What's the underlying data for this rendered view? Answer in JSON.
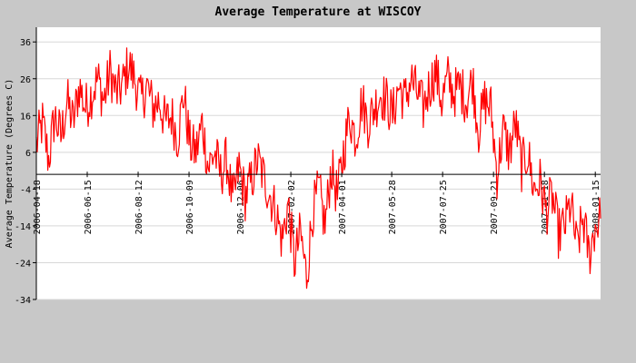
{
  "chart_data": {
    "type": "line",
    "title": "Average Temperature at WISCOY",
    "xlabel": "",
    "ylabel": "Average Temperature (Degrees C)",
    "x_range": [
      "2006-04-18",
      "2008-01-21"
    ],
    "ylim": [
      -34,
      40
    ],
    "y_ticks": [
      36,
      26,
      16,
      6,
      -4,
      -14,
      -24,
      -34
    ],
    "x_ticks": [
      "2006-04-18",
      "2006-06-15",
      "2006-08-12",
      "2006-10-09",
      "2006-12-06",
      "2007-02-02",
      "2007-04-01",
      "2007-05-28",
      "2007-07-25",
      "2007-09-21",
      "2007-11-18",
      "2008-01-15"
    ],
    "zero_line": 0,
    "grid": "horizontal",
    "line_color": "#ff0000",
    "series": [
      {
        "name": "",
        "dates": [
          "2006-04-18",
          "2006-04-25",
          "2006-05-02",
          "2006-05-09",
          "2006-05-16",
          "2006-05-23",
          "2006-05-30",
          "2006-06-06",
          "2006-06-13",
          "2006-06-20",
          "2006-06-27",
          "2006-07-04",
          "2006-07-11",
          "2006-07-18",
          "2006-07-25",
          "2006-08-01",
          "2006-08-08",
          "2006-08-15",
          "2006-08-22",
          "2006-08-29",
          "2006-09-05",
          "2006-09-12",
          "2006-09-19",
          "2006-09-26",
          "2006-10-03",
          "2006-10-10",
          "2006-10-17",
          "2006-10-24",
          "2006-10-31",
          "2006-11-07",
          "2006-11-14",
          "2006-11-21",
          "2006-11-28",
          "2006-12-05",
          "2006-12-12",
          "2006-12-19",
          "2006-12-26",
          "2007-01-16",
          "2007-01-23",
          "2007-01-30",
          "2007-02-06",
          "2007-02-13",
          "2007-02-20",
          "2007-02-27",
          "2007-03-06",
          "2007-03-13",
          "2007-03-20",
          "2007-03-27",
          "2007-04-03",
          "2007-04-10",
          "2007-04-17",
          "2007-04-24",
          "2007-05-01",
          "2007-05-08",
          "2007-05-15",
          "2007-05-22",
          "2007-05-29",
          "2007-06-05",
          "2007-06-12",
          "2007-06-19",
          "2007-06-26",
          "2007-07-03",
          "2007-07-10",
          "2007-07-17",
          "2007-07-24",
          "2007-07-31",
          "2007-08-07",
          "2007-08-14",
          "2007-08-21",
          "2007-08-28",
          "2007-09-04",
          "2007-09-11",
          "2007-09-18",
          "2007-09-25",
          "2007-10-02",
          "2007-10-09",
          "2007-10-16",
          "2007-10-23",
          "2007-10-30",
          "2007-11-06",
          "2007-11-13",
          "2007-11-20",
          "2007-11-27",
          "2007-12-04",
          "2007-12-11",
          "2007-12-18",
          "2007-12-25",
          "2008-01-01",
          "2008-01-08",
          "2008-01-15",
          "2008-01-21"
        ],
        "values": [
          8,
          14,
          4,
          16,
          10,
          20,
          14,
          24,
          18,
          22,
          26,
          20,
          28,
          22,
          24,
          30,
          26,
          20,
          24,
          18,
          20,
          14,
          16,
          10,
          22,
          8,
          6,
          14,
          2,
          6,
          0,
          4,
          -8,
          2,
          -6,
          -2,
          4,
          -10,
          -18,
          -8,
          -24,
          -16,
          -28,
          -10,
          -4,
          -14,
          2,
          -6,
          6,
          16,
          10,
          20,
          14,
          18,
          22,
          20,
          16,
          24,
          20,
          26,
          22,
          18,
          24,
          28,
          20,
          26,
          22,
          24,
          20,
          26,
          12,
          20,
          18,
          0,
          12,
          6,
          14,
          2,
          6,
          -4,
          -2,
          -10,
          -6,
          -16,
          -14,
          -8,
          -20,
          -12,
          -22,
          -14,
          -12
        ]
      }
    ]
  }
}
